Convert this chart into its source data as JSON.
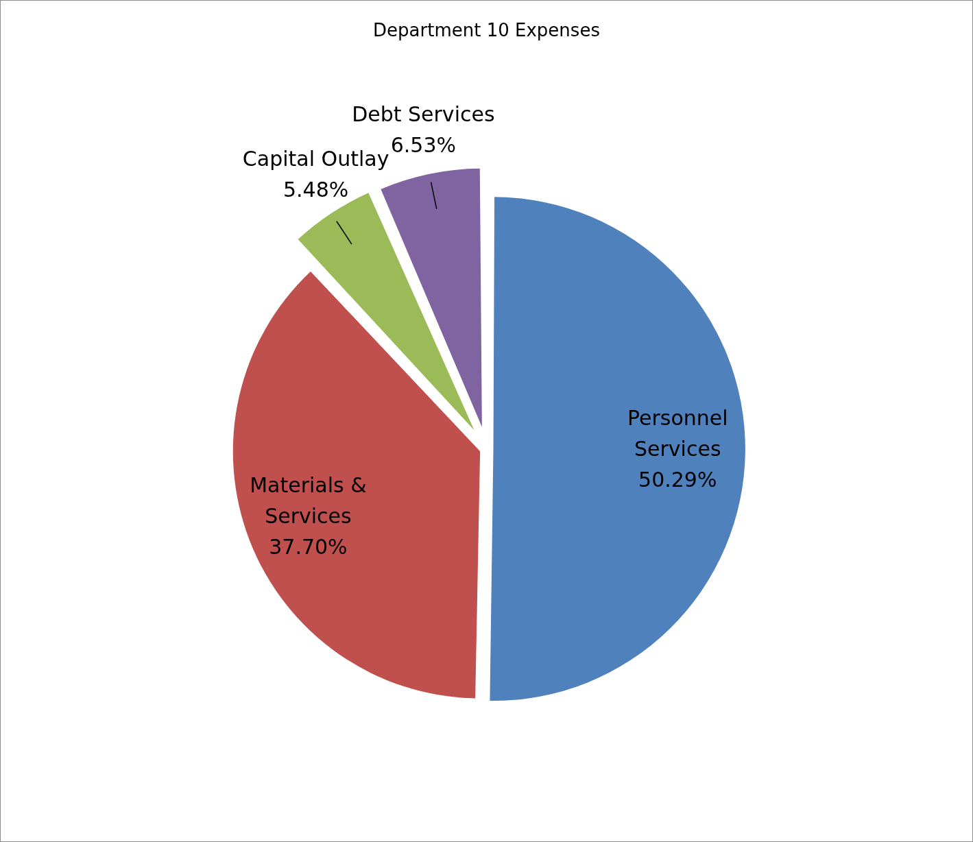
{
  "chart_data": {
    "type": "pie",
    "title": "Department 10 Expenses",
    "categories": [
      "Personnel Services",
      "Materials & Services",
      "Capital Outlay",
      "Debt Services"
    ],
    "values": [
      50.29,
      37.7,
      5.48,
      6.53
    ],
    "colors": [
      "#4f81bd",
      "#c0504d",
      "#9bbb59",
      "#8064a2"
    ],
    "value_labels": [
      "50.29%",
      "37.70%",
      "5.48%",
      "6.53%"
    ],
    "legend": false
  }
}
